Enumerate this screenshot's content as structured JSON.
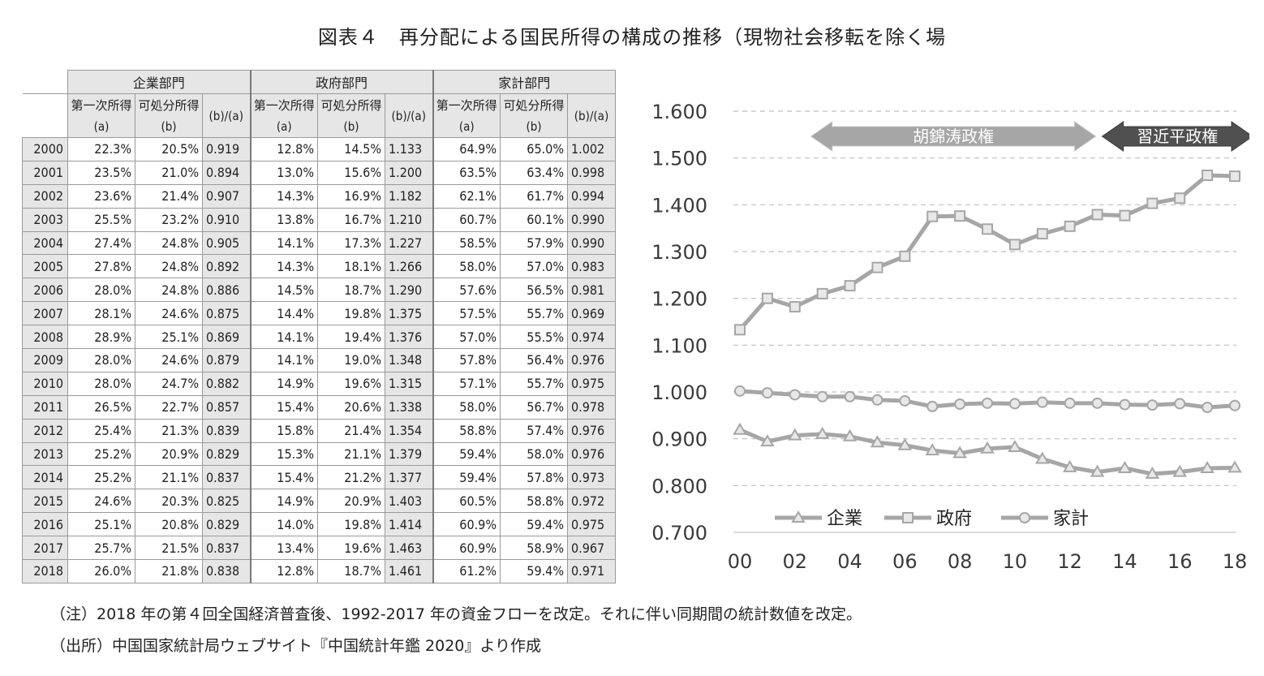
{
  "title": "図表４　再分配による国民所得の構成の推移（現物社会移転を除く場",
  "table": {
    "groups": [
      "企業部門",
      "政府部門",
      "家計部門"
    ],
    "sub_headers": [
      {
        "line1": "第一次所得",
        "line2": "(a)"
      },
      {
        "line1": "可処分所得",
        "line2": "(b)"
      },
      {
        "line1": "(b)/(a)",
        "line2": ""
      }
    ],
    "rows": [
      [
        "2000",
        "22.3%",
        "20.5%",
        "0.919",
        "12.8%",
        "14.5%",
        "1.133",
        "64.9%",
        "65.0%",
        "1.002"
      ],
      [
        "2001",
        "23.5%",
        "21.0%",
        "0.894",
        "13.0%",
        "15.6%",
        "1.200",
        "63.5%",
        "63.4%",
        "0.998"
      ],
      [
        "2002",
        "23.6%",
        "21.4%",
        "0.907",
        "14.3%",
        "16.9%",
        "1.182",
        "62.1%",
        "61.7%",
        "0.994"
      ],
      [
        "2003",
        "25.5%",
        "23.2%",
        "0.910",
        "13.8%",
        "16.7%",
        "1.210",
        "60.7%",
        "60.1%",
        "0.990"
      ],
      [
        "2004",
        "27.4%",
        "24.8%",
        "0.905",
        "14.1%",
        "17.3%",
        "1.227",
        "58.5%",
        "57.9%",
        "0.990"
      ],
      [
        "2005",
        "27.8%",
        "24.8%",
        "0.892",
        "14.3%",
        "18.1%",
        "1.266",
        "58.0%",
        "57.0%",
        "0.983"
      ],
      [
        "2006",
        "28.0%",
        "24.8%",
        "0.886",
        "14.5%",
        "18.7%",
        "1.290",
        "57.6%",
        "56.5%",
        "0.981"
      ],
      [
        "2007",
        "28.1%",
        "24.6%",
        "0.875",
        "14.4%",
        "19.8%",
        "1.375",
        "57.5%",
        "55.7%",
        "0.969"
      ],
      [
        "2008",
        "28.9%",
        "25.1%",
        "0.869",
        "14.1%",
        "19.4%",
        "1.376",
        "57.0%",
        "55.5%",
        "0.974"
      ],
      [
        "2009",
        "28.0%",
        "24.6%",
        "0.879",
        "14.1%",
        "19.0%",
        "1.348",
        "57.8%",
        "56.4%",
        "0.976"
      ],
      [
        "2010",
        "28.0%",
        "24.7%",
        "0.882",
        "14.9%",
        "19.6%",
        "1.315",
        "57.1%",
        "55.7%",
        "0.975"
      ],
      [
        "2011",
        "26.5%",
        "22.7%",
        "0.857",
        "15.4%",
        "20.6%",
        "1.338",
        "58.0%",
        "56.7%",
        "0.978"
      ],
      [
        "2012",
        "25.4%",
        "21.3%",
        "0.839",
        "15.8%",
        "21.4%",
        "1.354",
        "58.8%",
        "57.4%",
        "0.976"
      ],
      [
        "2013",
        "25.2%",
        "20.9%",
        "0.829",
        "15.3%",
        "21.1%",
        "1.379",
        "59.4%",
        "58.0%",
        "0.976"
      ],
      [
        "2014",
        "25.2%",
        "21.1%",
        "0.837",
        "15.4%",
        "21.2%",
        "1.377",
        "59.4%",
        "57.8%",
        "0.973"
      ],
      [
        "2015",
        "24.6%",
        "20.3%",
        "0.825",
        "14.9%",
        "20.9%",
        "1.403",
        "60.5%",
        "58.8%",
        "0.972"
      ],
      [
        "2016",
        "25.1%",
        "20.8%",
        "0.829",
        "14.0%",
        "19.8%",
        "1.414",
        "60.9%",
        "59.4%",
        "0.975"
      ],
      [
        "2017",
        "25.7%",
        "21.5%",
        "0.837",
        "13.4%",
        "19.6%",
        "1.463",
        "60.9%",
        "58.9%",
        "0.967"
      ],
      [
        "2018",
        "26.0%",
        "21.8%",
        "0.838",
        "12.8%",
        "18.7%",
        "1.461",
        "61.2%",
        "59.4%",
        "0.971"
      ]
    ]
  },
  "chart_data": {
    "type": "line",
    "x": [
      "00",
      "01",
      "02",
      "03",
      "04",
      "05",
      "06",
      "07",
      "08",
      "09",
      "10",
      "11",
      "12",
      "13",
      "14",
      "15",
      "16",
      "17",
      "18"
    ],
    "x_tick_labels": [
      "00",
      "02",
      "04",
      "06",
      "08",
      "10",
      "12",
      "14",
      "16",
      "18"
    ],
    "y_tick_labels": [
      "1.600",
      "1.500",
      "1.400",
      "1.300",
      "1.200",
      "1.100",
      "1.000",
      "0.900",
      "0.800",
      "0.700"
    ],
    "ylim": [
      0.7,
      1.6
    ],
    "grid": "horizontal dashed",
    "legend_placement": "bottom",
    "series": [
      {
        "name": "企業",
        "marker": "triangle",
        "values": [
          0.919,
          0.894,
          0.907,
          0.91,
          0.905,
          0.892,
          0.886,
          0.875,
          0.869,
          0.879,
          0.882,
          0.857,
          0.839,
          0.829,
          0.837,
          0.825,
          0.829,
          0.837,
          0.838
        ]
      },
      {
        "name": "政府",
        "marker": "square",
        "values": [
          1.133,
          1.2,
          1.182,
          1.21,
          1.227,
          1.266,
          1.29,
          1.375,
          1.376,
          1.348,
          1.315,
          1.338,
          1.354,
          1.379,
          1.377,
          1.403,
          1.414,
          1.463,
          1.461
        ]
      },
      {
        "name": "家計",
        "marker": "circle",
        "values": [
          1.002,
          0.998,
          0.994,
          0.99,
          0.99,
          0.983,
          0.981,
          0.969,
          0.974,
          0.976,
          0.975,
          0.978,
          0.976,
          0.976,
          0.973,
          0.972,
          0.975,
          0.967,
          0.971
        ]
      }
    ],
    "annotations": [
      {
        "label": "胡錦涛政権",
        "x_start": "03",
        "x_end": "13",
        "style": "light-arrow"
      },
      {
        "label": "習近平政権",
        "x_start": "13",
        "x_end": "18",
        "style": "dark-arrow"
      }
    ],
    "colors": {
      "line": "#a6a6a6",
      "marker_fill": "#e8e8e8",
      "grid": "#bfbfbf",
      "axis_text": "#3a3a3a",
      "light_arrow": "#a6a6a6",
      "dark_arrow": "#505050"
    }
  },
  "notes": [
    "（注）2018 年の第４回全国経済普査後、1992-2017 年の資金フローを改定。それに伴い同期間の統計数値を改定。",
    "（出所）中国国家統計局ウェブサイト『中国統計年鑑 2020』より作成"
  ]
}
